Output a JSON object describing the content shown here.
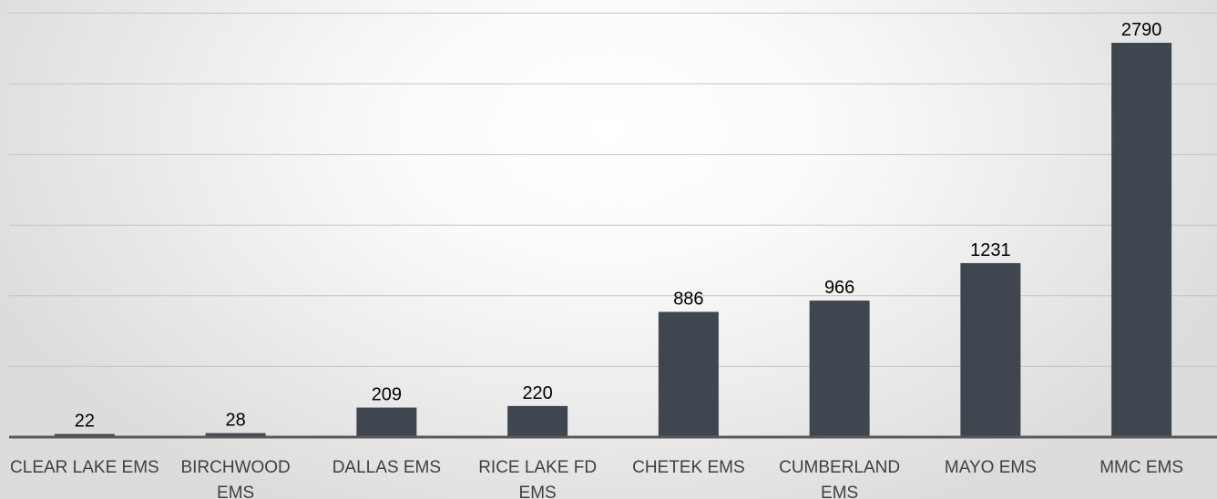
{
  "chart_data": {
    "type": "bar",
    "categories": [
      "CLEAR LAKE EMS",
      "BIRCHWOOD EMS",
      "DALLAS EMS",
      "RICE LAKE FD EMS",
      "CHETEK EMS",
      "CUMBERLAND EMS",
      "MAYO EMS",
      "MMC EMS"
    ],
    "category_lines": [
      [
        "CLEAR LAKE EMS"
      ],
      [
        "BIRCHWOOD",
        "EMS"
      ],
      [
        "DALLAS EMS"
      ],
      [
        "RICE LAKE FD",
        "EMS"
      ],
      [
        "CHETEK EMS"
      ],
      [
        "CUMBERLAND",
        "EMS"
      ],
      [
        "MAYO EMS"
      ],
      [
        "MMC EMS"
      ]
    ],
    "values": [
      22,
      28,
      209,
      220,
      886,
      966,
      1231,
      2790
    ],
    "data_labels": [
      "22",
      "28",
      "209",
      "220",
      "886",
      "966",
      "1231",
      "2790"
    ],
    "title": "",
    "xlabel": "",
    "ylabel": "",
    "ylim": [
      0,
      3000
    ],
    "y_gridline_step": 500,
    "grid": true,
    "legend": "none",
    "colors": {
      "bar": "#404650",
      "gridline": "#c4c4c4",
      "baseline": "#595959",
      "data_label": "#000000",
      "tick_label": "#404040"
    }
  }
}
